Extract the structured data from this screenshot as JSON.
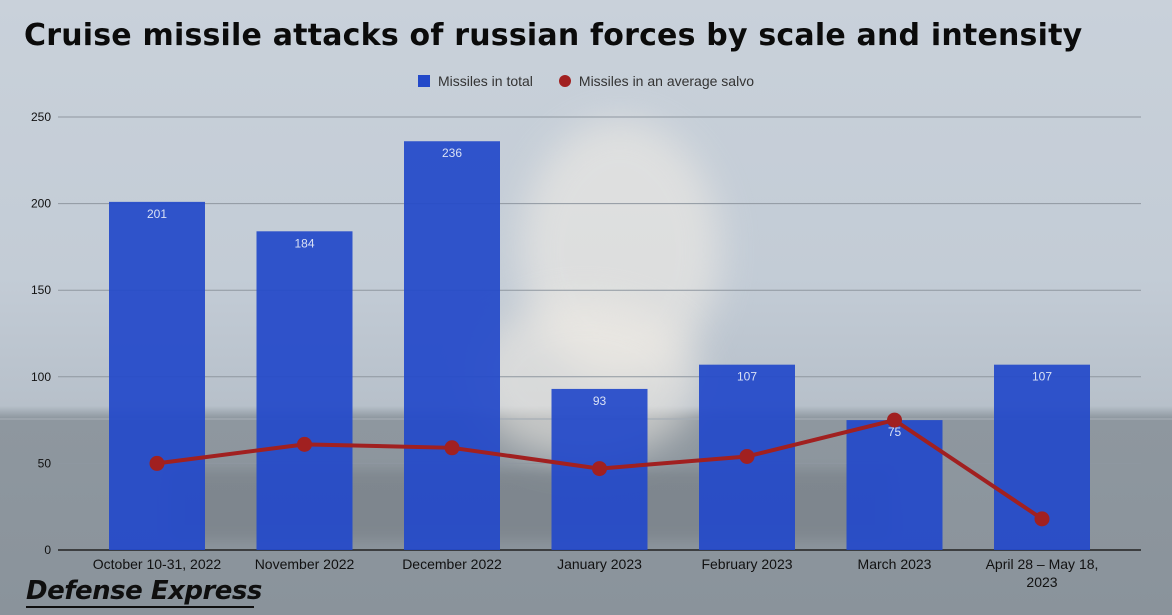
{
  "title": "Cruise missile attacks of russian forces by scale and intensity",
  "brand": "Defense Express",
  "colors": {
    "bars": "#2349c9",
    "line": "#a12020",
    "grid": "#8f97a0",
    "axis": "#222222"
  },
  "chart_data": {
    "type": "bar",
    "categories": [
      "October 10-31, 2022",
      "November 2022",
      "December 2022",
      "January 2023",
      "February 2023",
      "March 2023",
      "April 28 – May 18, 2023"
    ],
    "series": [
      {
        "name": "Missiles in total",
        "type": "bar",
        "values": [
          201,
          184,
          236,
          93,
          107,
          75,
          107
        ]
      },
      {
        "name": "Missiles in an average salvo",
        "type": "line",
        "values": [
          50,
          61,
          59,
          47,
          54,
          75,
          18
        ]
      }
    ],
    "ylim": [
      0,
      250
    ],
    "yticks": [
      0,
      50,
      100,
      150,
      200,
      250
    ],
    "grid": true,
    "legend": "top-center",
    "bar_data_labels": true
  }
}
